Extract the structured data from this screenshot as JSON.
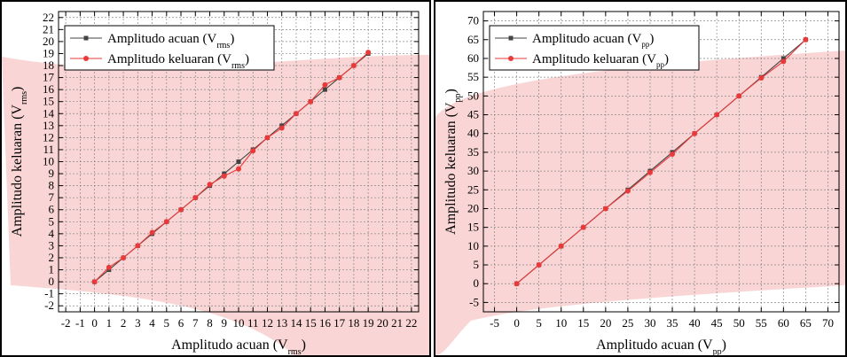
{
  "chart_data": [
    {
      "type": "line",
      "xlabel": "Amplitudo acuan (V",
      "xlabel_sub": "rms",
      "xlabel_end": ")",
      "ylabel": "Amplitudo keluaran (V",
      "ylabel_sub": "rms",
      "ylabel_end": ")",
      "xlim": [
        -2.5,
        22.5
      ],
      "ylim": [
        -2.5,
        22.5
      ],
      "xticks": [
        -2,
        -1,
        0,
        1,
        2,
        3,
        4,
        5,
        6,
        7,
        8,
        9,
        10,
        11,
        12,
        13,
        14,
        15,
        16,
        17,
        18,
        19,
        20,
        21,
        22
      ],
      "yticks": [
        -2,
        -1,
        0,
        1,
        2,
        3,
        4,
        5,
        6,
        7,
        8,
        9,
        10,
        11,
        12,
        13,
        14,
        15,
        16,
        17,
        18,
        19,
        20,
        21,
        22
      ],
      "grid": true,
      "legend_position": "top-left",
      "series": [
        {
          "name": "Amplitudo acuan (V",
          "name_sub": "rms",
          "name_end": ")",
          "color": "#444444",
          "marker": "square",
          "x": [
            0,
            1,
            2,
            3,
            4,
            5,
            6,
            7,
            8,
            9,
            10,
            11,
            12,
            13,
            14,
            15,
            16,
            17,
            18,
            19
          ],
          "y": [
            0,
            1,
            2,
            3,
            4,
            5,
            6,
            7,
            8,
            9,
            10,
            11,
            12,
            13,
            14,
            15,
            16,
            17,
            18,
            19
          ]
        },
        {
          "name": "Amplitudo keluaran (V",
          "name_sub": "rms",
          "name_end": ")",
          "color": "#e83a3a",
          "marker": "circle",
          "x": [
            0,
            1,
            2,
            3,
            4,
            5,
            6,
            7,
            8,
            9,
            10,
            11,
            12,
            13,
            14,
            15,
            16,
            17,
            18,
            19
          ],
          "y": [
            0,
            1.2,
            2,
            3,
            4.1,
            5,
            6,
            7,
            8.1,
            8.8,
            9.4,
            10.9,
            12,
            12.8,
            14,
            15,
            16.4,
            17,
            18,
            19.1
          ]
        }
      ]
    },
    {
      "type": "line",
      "xlabel": "Amplitudo acuan (V",
      "xlabel_sub": "pp",
      "xlabel_end": ")",
      "ylabel": "Amplitudo keluaran (V",
      "ylabel_sub": "pp",
      "ylabel_end": ")",
      "xlim": [
        -7.5,
        72.5
      ],
      "ylim": [
        -7.5,
        72.5
      ],
      "xticks": [
        -5,
        0,
        5,
        10,
        15,
        20,
        25,
        30,
        35,
        40,
        45,
        50,
        55,
        60,
        65,
        70
      ],
      "yticks": [
        -5,
        0,
        5,
        10,
        15,
        20,
        25,
        30,
        35,
        40,
        45,
        50,
        55,
        60,
        65,
        70
      ],
      "grid": true,
      "legend_position": "top-left",
      "series": [
        {
          "name": "Amplitudo acuan (V",
          "name_sub": "pp",
          "name_end": ")",
          "color": "#444444",
          "marker": "square",
          "x": [
            0,
            5,
            10,
            15,
            20,
            25,
            30,
            35,
            40,
            45,
            50,
            55,
            60,
            65
          ],
          "y": [
            0,
            5,
            10,
            15,
            20,
            25,
            30,
            35,
            40,
            45,
            50,
            55,
            60,
            65
          ]
        },
        {
          "name": "Amplitudo keluaran (V",
          "name_sub": "pp",
          "name_end": ")",
          "color": "#e83a3a",
          "marker": "circle",
          "x": [
            0,
            5,
            10,
            15,
            20,
            25,
            30,
            35,
            40,
            45,
            50,
            55,
            60,
            65
          ],
          "y": [
            0,
            5,
            10,
            15,
            20,
            24.7,
            29.6,
            34.5,
            40,
            45,
            50,
            54.8,
            59.2,
            65
          ]
        }
      ]
    }
  ]
}
